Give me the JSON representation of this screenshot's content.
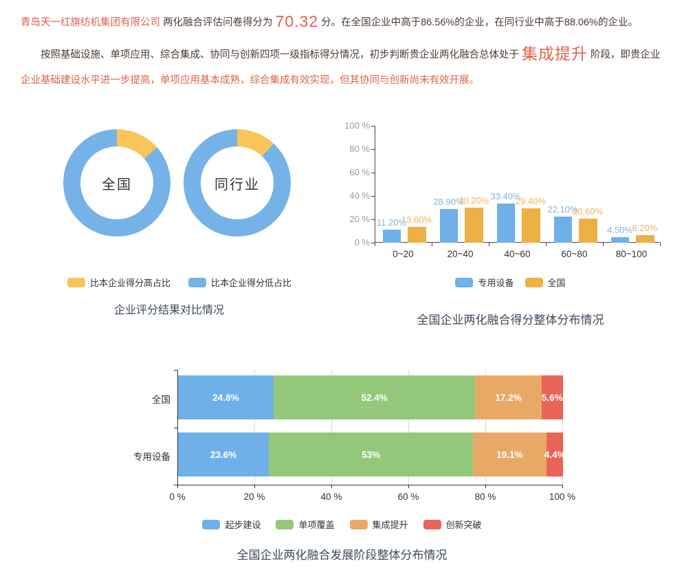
{
  "intro": {
    "company": "青岛天一红旗纺机集团有限公司",
    "score_label": " 两化融合评估问卷得分为",
    "score": "70.32",
    "score_suffix": "分。在全国企业中高于86.56%的企业，在同行业中高于88.06%的企业。",
    "stage_lead": "按照基础设施、单项应用、综合集成、协同与创新四项一级指标得分情况，初步判断贵企业两化融合总体处于",
    "stage": "集成提升",
    "stage_mid": "阶段，即贵企业",
    "stage_tail": "企业基础建设水平进一步提高，单项应用基本成熟，综合集成有效实现，但其协同与创新尚未有效开展。"
  },
  "colors": {
    "highlight": "#e0614b",
    "dark_text": "#4e3a32",
    "title_text": "#3b4a58",
    "axis_line": "#444444",
    "grid_line": "#d9d9d9",
    "y_tick_text": "#999999",
    "x_tick_text": "#333333"
  },
  "chart_data": [
    {
      "type": "pie",
      "variant": "double-donut",
      "title": "企业评分结果对比情况",
      "legend": [
        {
          "label": "比本企业得分高占比",
          "color": "#f9c45a"
        },
        {
          "label": "比本企业得分低占比",
          "color": "#74b2e8"
        }
      ],
      "donuts": [
        {
          "label": "全国",
          "slices": [
            {
              "name": "比本企业得分高占比",
              "value": 13.44
            },
            {
              "name": "比本企业得分低占比",
              "value": 86.56
            }
          ]
        },
        {
          "label": "同行业",
          "slices": [
            {
              "name": "比本企业得分高占比",
              "value": 11.94
            },
            {
              "name": "比本企业得分低占比",
              "value": 88.06
            }
          ]
        }
      ]
    },
    {
      "type": "bar",
      "title": "全国企业两化融合得分整体分布情况",
      "categories": [
        "0~20",
        "20~40",
        "40~60",
        "60~80",
        "80~100"
      ],
      "series": [
        {
          "name": "专用设备",
          "color": "#6fb0e8",
          "label_color": "#82b4e0",
          "values": [
            11.2,
            28.9,
            33.4,
            22.1,
            4.5
          ],
          "labels": [
            "11.20%",
            "28.90%",
            "33.40%",
            "22.10%",
            "4.50%"
          ]
        },
        {
          "name": "全国",
          "color": "#edb044",
          "label_color": "#efb35c",
          "values": [
            13.6,
            30.2,
            29.4,
            20.6,
            6.2
          ],
          "labels": [
            "13.60%",
            "30.20%",
            "29.40%",
            "20.60%",
            "6.20%"
          ]
        }
      ],
      "y_ticks": [
        "0 %",
        "20 %",
        "40 %",
        "60 %",
        "80 %",
        "100 %"
      ],
      "ylim": [
        0,
        100
      ],
      "grid": false,
      "legend_position": "bottom"
    },
    {
      "type": "bar",
      "variant": "horizontal-stacked",
      "title": "全国企业两化融合发展阶段整体分布情况",
      "categories": [
        "全国",
        "专用设备"
      ],
      "series": [
        {
          "name": "起步建设",
          "color": "#6fb0e8",
          "values": [
            24.8,
            23.6
          ],
          "labels": [
            "24.8%",
            "23.6%"
          ]
        },
        {
          "name": "单项覆盖",
          "color": "#93c87b",
          "values": [
            52.4,
            53
          ],
          "labels": [
            "52.4%",
            "53%"
          ]
        },
        {
          "name": "集成提升",
          "color": "#e8a967",
          "values": [
            17.2,
            19.1
          ],
          "labels": [
            "17.2%",
            "19.1%"
          ]
        },
        {
          "name": "创新突破",
          "color": "#e96456",
          "values": [
            5.6,
            4.4
          ],
          "labels": [
            "5.6%",
            "4.4%"
          ]
        }
      ],
      "x_ticks": [
        "0 %",
        "20 %",
        "40 %",
        "60 %",
        "80 %",
        "100 %"
      ],
      "xlim": [
        0,
        100
      ],
      "grid": true,
      "legend_position": "bottom"
    }
  ]
}
